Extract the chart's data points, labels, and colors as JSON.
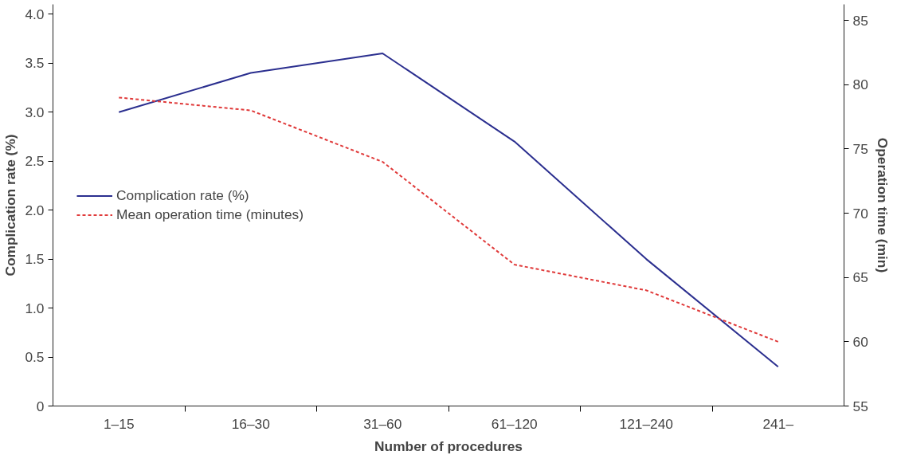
{
  "chart_data": {
    "type": "line",
    "xlabel": "Number of procedures",
    "ylabel": "Complication rate (%)",
    "y2label": "Operation time (min)",
    "categories": [
      "1–15",
      "16–30",
      "31–60",
      "61–120",
      "121–240",
      "241–"
    ],
    "series": [
      {
        "name": "Complication rate (%)",
        "color": "#2b2f8f",
        "values": [
          3.0,
          3.4,
          3.6,
          2.7,
          1.5,
          0.4
        ],
        "line_style": "solid"
      },
      {
        "name": "Mean operation time (minutes)",
        "color": "#e03a3a",
        "values": [
          79,
          78,
          74,
          66,
          64,
          60
        ],
        "axis": "y2",
        "line_style": "dashed"
      }
    ],
    "ylim": [
      0,
      4.1
    ],
    "yticks": [
      0,
      {
        "value": 0.5,
        "label": "0.5"
      },
      {
        "value": 1,
        "label": "1.0"
      },
      {
        "value": 1.5,
        "label": "1.5"
      },
      {
        "value": 2,
        "label": "2.0"
      },
      {
        "value": 2.5,
        "label": "2.5"
      },
      {
        "value": 3,
        "label": "3.0"
      },
      {
        "value": 3.5,
        "label": "3.5"
      },
      {
        "value": 4,
        "label": "4.0"
      }
    ],
    "y2lim": [
      55,
      86.25
    ],
    "y2ticks": [
      55,
      60,
      65,
      70,
      75,
      80,
      85
    ],
    "grid": false,
    "legend": "left",
    "marker": "none"
  }
}
